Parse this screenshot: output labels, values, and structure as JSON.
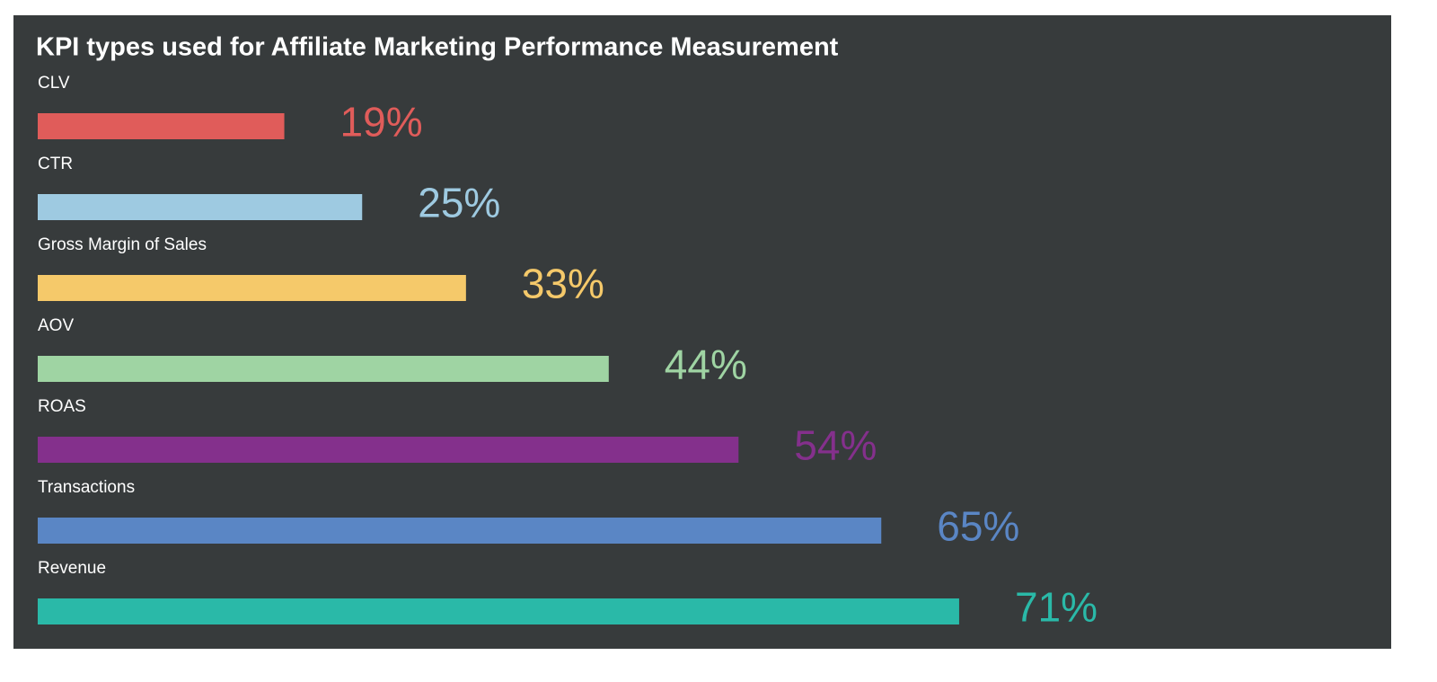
{
  "chart_data": {
    "type": "bar",
    "title": "KPI types used for Affiliate Marketing Performance Measurement",
    "categories": [
      "CLV",
      "CTR",
      "Gross Margin of Sales",
      "AOV",
      "ROAS",
      "Transactions",
      "Revenue"
    ],
    "values": [
      19,
      25,
      33,
      44,
      54,
      65,
      71
    ],
    "value_labels": [
      "19%",
      "25%",
      "33%",
      "44%",
      "54%",
      "65%",
      "71%"
    ],
    "colors": [
      "#e05c5a",
      "#9ecae1",
      "#f5c96a",
      "#9fd4a3",
      "#84308c",
      "#5a86c5",
      "#2ab9a8"
    ]
  }
}
